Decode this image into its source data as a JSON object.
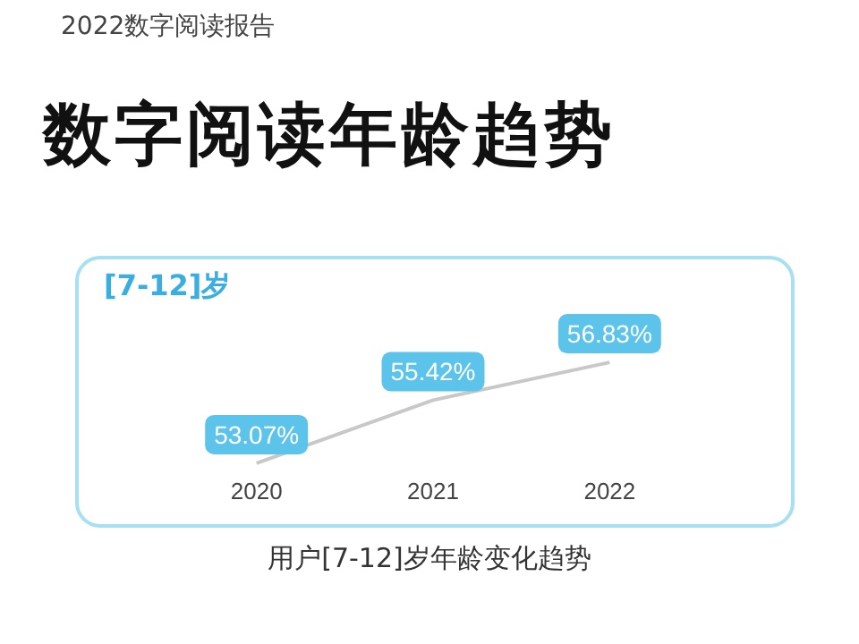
{
  "chart_data": {
    "type": "line",
    "subtitle": "2022数字阅读报告",
    "title": "数字阅读年龄趋势",
    "annotations": [
      "[7-12]岁",
      "用户[7-12]岁年龄变化趋势"
    ],
    "categories": [
      "2020",
      "2021",
      "2022"
    ],
    "series": [
      {
        "color": "#c8c8c8",
        "values": [
          53.07,
          55.42,
          56.83
        ],
        "value_labels": [
          "53.07%",
          "55.42%",
          "56.83%"
        ]
      }
    ]
  }
}
